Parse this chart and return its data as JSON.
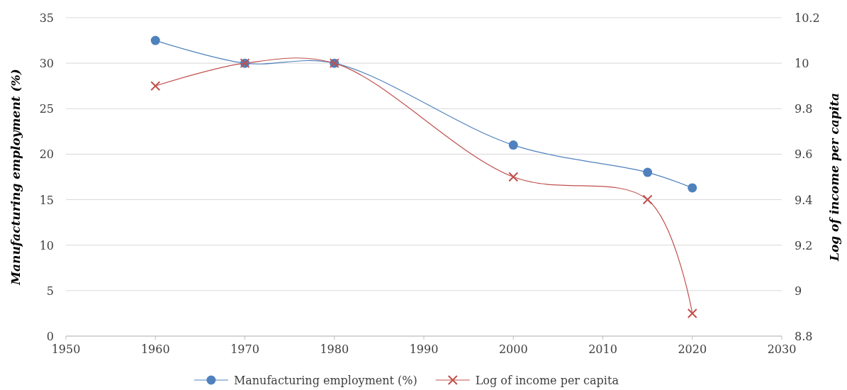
{
  "chart_data": {
    "type": "line",
    "x": [
      1960,
      1970,
      1980,
      2000,
      2015,
      2020
    ],
    "xlim": [
      1950,
      2030
    ],
    "xticks": [
      1950,
      1960,
      1970,
      1980,
      1990,
      2000,
      2010,
      2020,
      2030
    ],
    "ylim": [
      0,
      35
    ],
    "yticks": [
      0,
      5,
      10,
      15,
      20,
      25,
      30,
      35
    ],
    "y2lim": [
      8.8,
      10.2
    ],
    "y2ticks": [
      8.8,
      9,
      9.2,
      9.4,
      9.6,
      9.8,
      10,
      10.2
    ],
    "ylabel": "Manufacturing employment (%)",
    "y2label": "Log of income per capita",
    "grid": "y",
    "legend": "bottom",
    "series": [
      {
        "name": "Manufacturing employment (%)",
        "color": "#4f81bd",
        "marker": "circle",
        "values": [
          32.5,
          30,
          30,
          21,
          18,
          16.3
        ]
      },
      {
        "name": "Log of income per capita",
        "color": "#c0504d",
        "marker": "cross",
        "axis": "y2",
        "values": [
          9.9,
          10.0,
          10.0,
          9.5,
          9.4,
          8.9
        ]
      }
    ]
  }
}
